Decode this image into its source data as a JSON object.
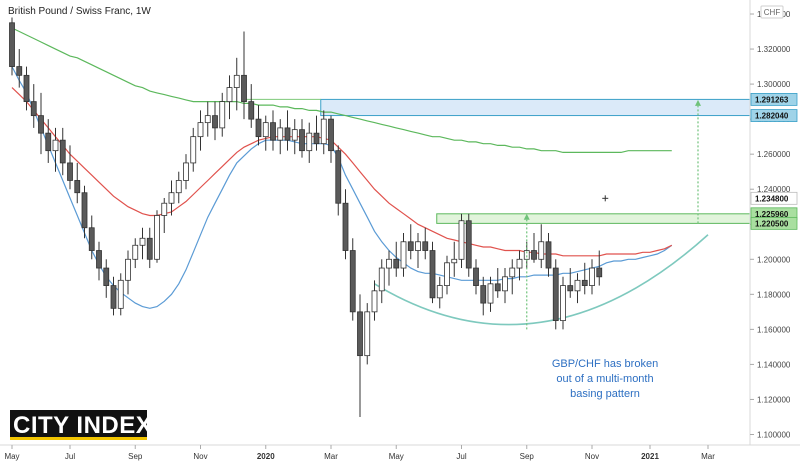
{
  "chart_data": {
    "type": "candlestick",
    "title": "British Pound / Swiss Franc, 1W",
    "currency_label": "CHF",
    "xlabel": "",
    "ylabel": "",
    "ylim": [
      1.094,
      1.348
    ],
    "y_ticks": [
      1.1,
      1.12,
      1.14,
      1.16,
      1.18,
      1.2,
      1.22,
      1.24,
      1.26,
      1.28,
      1.3,
      1.32,
      1.34
    ],
    "y_tick_labels": [
      "1.100000",
      "1.120000",
      "1.140000",
      "1.160000",
      "1.180000",
      "1.200000",
      "1.220000",
      "1.240000",
      "1.260000",
      "1.280000",
      "1.300000",
      "1.320000",
      "1.340000"
    ],
    "x_tick_labels": [
      "May",
      "Jul",
      "Sep",
      "Nov",
      "2020",
      "Mar",
      "May",
      "Jul",
      "Sep",
      "Nov",
      "2021",
      "Mar"
    ],
    "x_tick_candle_index": [
      0,
      8,
      17,
      26,
      35,
      44,
      53,
      62,
      71,
      80,
      88,
      96
    ],
    "price_labels": [
      {
        "value": 1.291263,
        "label": "1.291263",
        "color": "#9fd3e8"
      },
      {
        "value": 1.28204,
        "label": "1.282040",
        "color": "#9fd3e8"
      },
      {
        "value": 1.2348,
        "label": "1.234800",
        "color": "#ffffff"
      },
      {
        "value": 1.22596,
        "label": "1.225960",
        "color": "#a9dfa0"
      },
      {
        "value": 1.2205,
        "label": "1.220500",
        "color": "#a9dfa0"
      }
    ],
    "zones": [
      {
        "name": "upper target zone",
        "from_index": 43,
        "y_low": 1.28204,
        "y_high": 1.291263,
        "color": "#cfe3f7"
      },
      {
        "name": "breakout zone",
        "from_index": 59,
        "y_low": 1.2205,
        "y_high": 1.22596,
        "color": "#d7f0cf"
      }
    ],
    "annotation": {
      "lines": [
        "GBP/CHF has broken",
        "out of a multi-month",
        "basing pattern"
      ],
      "color": "#2d6fc2"
    },
    "series": [
      {
        "kind": "ma",
        "color": "#5b9bd5",
        "values": [
          1.31,
          1.302,
          1.295,
          1.285,
          1.275,
          1.265,
          1.255,
          1.245,
          1.235,
          1.225,
          1.215,
          1.205,
          1.197,
          1.19,
          1.185,
          1.181,
          1.178,
          1.175,
          1.173,
          1.172,
          1.173,
          1.176,
          1.18,
          1.186,
          1.194,
          1.204,
          1.214,
          1.224,
          1.232,
          1.24,
          1.248,
          1.255,
          1.259,
          1.263,
          1.266,
          1.268,
          1.268,
          1.268,
          1.268,
          1.267,
          1.266,
          1.266,
          1.266,
          1.266,
          1.265,
          1.258,
          1.248,
          1.24,
          1.232,
          1.224,
          1.216,
          1.21,
          1.205,
          1.201,
          1.198,
          1.195,
          1.193,
          1.192,
          1.192,
          1.191,
          1.19,
          1.189,
          1.188,
          1.188,
          1.188,
          1.188,
          1.188,
          1.188,
          1.189,
          1.189,
          1.19,
          1.19,
          1.191,
          1.191,
          1.191,
          1.191,
          1.192,
          1.192,
          1.193,
          1.194,
          1.195,
          1.196,
          1.198,
          1.199,
          1.199,
          1.2,
          1.2,
          1.201,
          1.202,
          1.203,
          1.205,
          1.208
        ]
      },
      {
        "kind": "ma",
        "color": "#e0524d",
        "values": [
          1.298,
          1.294,
          1.29,
          1.285,
          1.28,
          1.275,
          1.27,
          1.265,
          1.26,
          1.256,
          1.252,
          1.248,
          1.244,
          1.24,
          1.236,
          1.233,
          1.23,
          1.228,
          1.226,
          1.225,
          1.225,
          1.226,
          1.227,
          1.23,
          1.233,
          1.237,
          1.241,
          1.245,
          1.249,
          1.253,
          1.257,
          1.261,
          1.264,
          1.266,
          1.268,
          1.269,
          1.27,
          1.27,
          1.27,
          1.27,
          1.27,
          1.27,
          1.27,
          1.269,
          1.268,
          1.264,
          1.26,
          1.255,
          1.25,
          1.245,
          1.24,
          1.236,
          1.232,
          1.229,
          1.226,
          1.223,
          1.22,
          1.218,
          1.216,
          1.214,
          1.212,
          1.211,
          1.21,
          1.209,
          1.208,
          1.207,
          1.207,
          1.206,
          1.205,
          1.205,
          1.205,
          1.204,
          1.204,
          1.203,
          1.203,
          1.203,
          1.202,
          1.202,
          1.202,
          1.202,
          1.202,
          1.202,
          1.203,
          1.203,
          1.203,
          1.203,
          1.203,
          1.204,
          1.204,
          1.205,
          1.206,
          1.208
        ]
      },
      {
        "kind": "ma",
        "color": "#5cb85c",
        "values": [
          1.332,
          1.33,
          1.328,
          1.326,
          1.324,
          1.322,
          1.32,
          1.318,
          1.316,
          1.315,
          1.313,
          1.311,
          1.309,
          1.307,
          1.305,
          1.303,
          1.301,
          1.299,
          1.298,
          1.296,
          1.295,
          1.294,
          1.293,
          1.292,
          1.291,
          1.29,
          1.29,
          1.29,
          1.29,
          1.29,
          1.29,
          1.29,
          1.289,
          1.289,
          1.288,
          1.288,
          1.288,
          1.287,
          1.287,
          1.286,
          1.286,
          1.285,
          1.285,
          1.284,
          1.284,
          1.283,
          1.282,
          1.281,
          1.28,
          1.279,
          1.278,
          1.277,
          1.276,
          1.275,
          1.274,
          1.273,
          1.272,
          1.271,
          1.27,
          1.27,
          1.269,
          1.268,
          1.268,
          1.267,
          1.267,
          1.266,
          1.266,
          1.265,
          1.265,
          1.264,
          1.264,
          1.263,
          1.263,
          1.262,
          1.262,
          1.262,
          1.261,
          1.261,
          1.261,
          1.261,
          1.261,
          1.261,
          1.261,
          1.261,
          1.261,
          1.262,
          1.262,
          1.262,
          1.262,
          1.262,
          1.262,
          1.262
        ]
      },
      {
        "kind": "candles",
        "up_color": "#ffffff",
        "down_color": "#5a5a5a",
        "ohlc": [
          [
            1.335,
            1.338,
            1.305,
            1.31
          ],
          [
            1.31,
            1.32,
            1.298,
            1.305
          ],
          [
            1.305,
            1.31,
            1.285,
            1.29
          ],
          [
            1.29,
            1.3,
            1.275,
            1.282
          ],
          [
            1.282,
            1.295,
            1.26,
            1.272
          ],
          [
            1.272,
            1.28,
            1.255,
            1.262
          ],
          [
            1.262,
            1.275,
            1.25,
            1.268
          ],
          [
            1.268,
            1.275,
            1.248,
            1.255
          ],
          [
            1.255,
            1.265,
            1.24,
            1.245
          ],
          [
            1.245,
            1.255,
            1.232,
            1.238
          ],
          [
            1.238,
            1.242,
            1.212,
            1.218
          ],
          [
            1.218,
            1.225,
            1.2,
            1.205
          ],
          [
            1.205,
            1.21,
            1.188,
            1.195
          ],
          [
            1.195,
            1.2,
            1.178,
            1.185
          ],
          [
            1.185,
            1.19,
            1.168,
            1.172
          ],
          [
            1.172,
            1.192,
            1.168,
            1.188
          ],
          [
            1.188,
            1.205,
            1.18,
            1.2
          ],
          [
            1.2,
            1.212,
            1.195,
            1.208
          ],
          [
            1.208,
            1.218,
            1.2,
            1.212
          ],
          [
            1.212,
            1.218,
            1.195,
            1.2
          ],
          [
            1.2,
            1.228,
            1.198,
            1.225
          ],
          [
            1.225,
            1.235,
            1.215,
            1.232
          ],
          [
            1.232,
            1.245,
            1.225,
            1.238
          ],
          [
            1.238,
            1.25,
            1.232,
            1.245
          ],
          [
            1.245,
            1.26,
            1.24,
            1.255
          ],
          [
            1.255,
            1.275,
            1.25,
            1.27
          ],
          [
            1.27,
            1.285,
            1.262,
            1.278
          ],
          [
            1.278,
            1.29,
            1.27,
            1.282
          ],
          [
            1.282,
            1.29,
            1.268,
            1.275
          ],
          [
            1.275,
            1.295,
            1.27,
            1.29
          ],
          [
            1.29,
            1.305,
            1.28,
            1.298
          ],
          [
            1.298,
            1.315,
            1.285,
            1.305
          ],
          [
            1.305,
            1.33,
            1.28,
            1.29
          ],
          [
            1.29,
            1.3,
            1.275,
            1.28
          ],
          [
            1.28,
            1.288,
            1.265,
            1.27
          ],
          [
            1.27,
            1.282,
            1.262,
            1.278
          ],
          [
            1.278,
            1.285,
            1.262,
            1.268
          ],
          [
            1.268,
            1.28,
            1.26,
            1.275
          ],
          [
            1.275,
            1.285,
            1.262,
            1.268
          ],
          [
            1.268,
            1.28,
            1.26,
            1.274
          ],
          [
            1.274,
            1.28,
            1.258,
            1.262
          ],
          [
            1.262,
            1.278,
            1.255,
            1.272
          ],
          [
            1.272,
            1.282,
            1.262,
            1.266
          ],
          [
            1.266,
            1.285,
            1.26,
            1.28
          ],
          [
            1.28,
            1.282,
            1.255,
            1.262
          ],
          [
            1.262,
            1.265,
            1.225,
            1.232
          ],
          [
            1.232,
            1.24,
            1.2,
            1.205
          ],
          [
            1.205,
            1.212,
            1.165,
            1.17
          ],
          [
            1.17,
            1.18,
            1.11,
            1.145
          ],
          [
            1.145,
            1.175,
            1.14,
            1.17
          ],
          [
            1.17,
            1.188,
            1.165,
            1.182
          ],
          [
            1.182,
            1.2,
            1.175,
            1.195
          ],
          [
            1.195,
            1.205,
            1.185,
            1.2
          ],
          [
            1.2,
            1.21,
            1.19,
            1.195
          ],
          [
            1.195,
            1.215,
            1.19,
            1.21
          ],
          [
            1.21,
            1.22,
            1.2,
            1.205
          ],
          [
            1.205,
            1.215,
            1.195,
            1.21
          ],
          [
            1.21,
            1.218,
            1.2,
            1.205
          ],
          [
            1.205,
            1.21,
            1.175,
            1.178
          ],
          [
            1.178,
            1.19,
            1.172,
            1.185
          ],
          [
            1.185,
            1.202,
            1.18,
            1.198
          ],
          [
            1.198,
            1.21,
            1.19,
            1.2
          ],
          [
            1.2,
            1.226,
            1.195,
            1.222
          ],
          [
            1.222,
            1.226,
            1.19,
            1.195
          ],
          [
            1.195,
            1.2,
            1.18,
            1.185
          ],
          [
            1.185,
            1.19,
            1.168,
            1.175
          ],
          [
            1.175,
            1.19,
            1.17,
            1.186
          ],
          [
            1.186,
            1.195,
            1.178,
            1.182
          ],
          [
            1.182,
            1.195,
            1.175,
            1.19
          ],
          [
            1.19,
            1.2,
            1.18,
            1.195
          ],
          [
            1.195,
            1.205,
            1.188,
            1.2
          ],
          [
            1.2,
            1.21,
            1.195,
            1.205
          ],
          [
            1.205,
            1.215,
            1.198,
            1.2
          ],
          [
            1.2,
            1.22,
            1.195,
            1.21
          ],
          [
            1.21,
            1.215,
            1.19,
            1.195
          ],
          [
            1.195,
            1.2,
            1.16,
            1.165
          ],
          [
            1.165,
            1.19,
            1.16,
            1.185
          ],
          [
            1.185,
            1.195,
            1.178,
            1.182
          ],
          [
            1.182,
            1.192,
            1.175,
            1.188
          ],
          [
            1.188,
            1.198,
            1.18,
            1.185
          ],
          [
            1.185,
            1.2,
            1.18,
            1.195
          ],
          [
            1.195,
            1.205,
            1.185,
            1.19
          ]
        ]
      }
    ]
  },
  "logo": {
    "text": "CITY INDEX"
  }
}
